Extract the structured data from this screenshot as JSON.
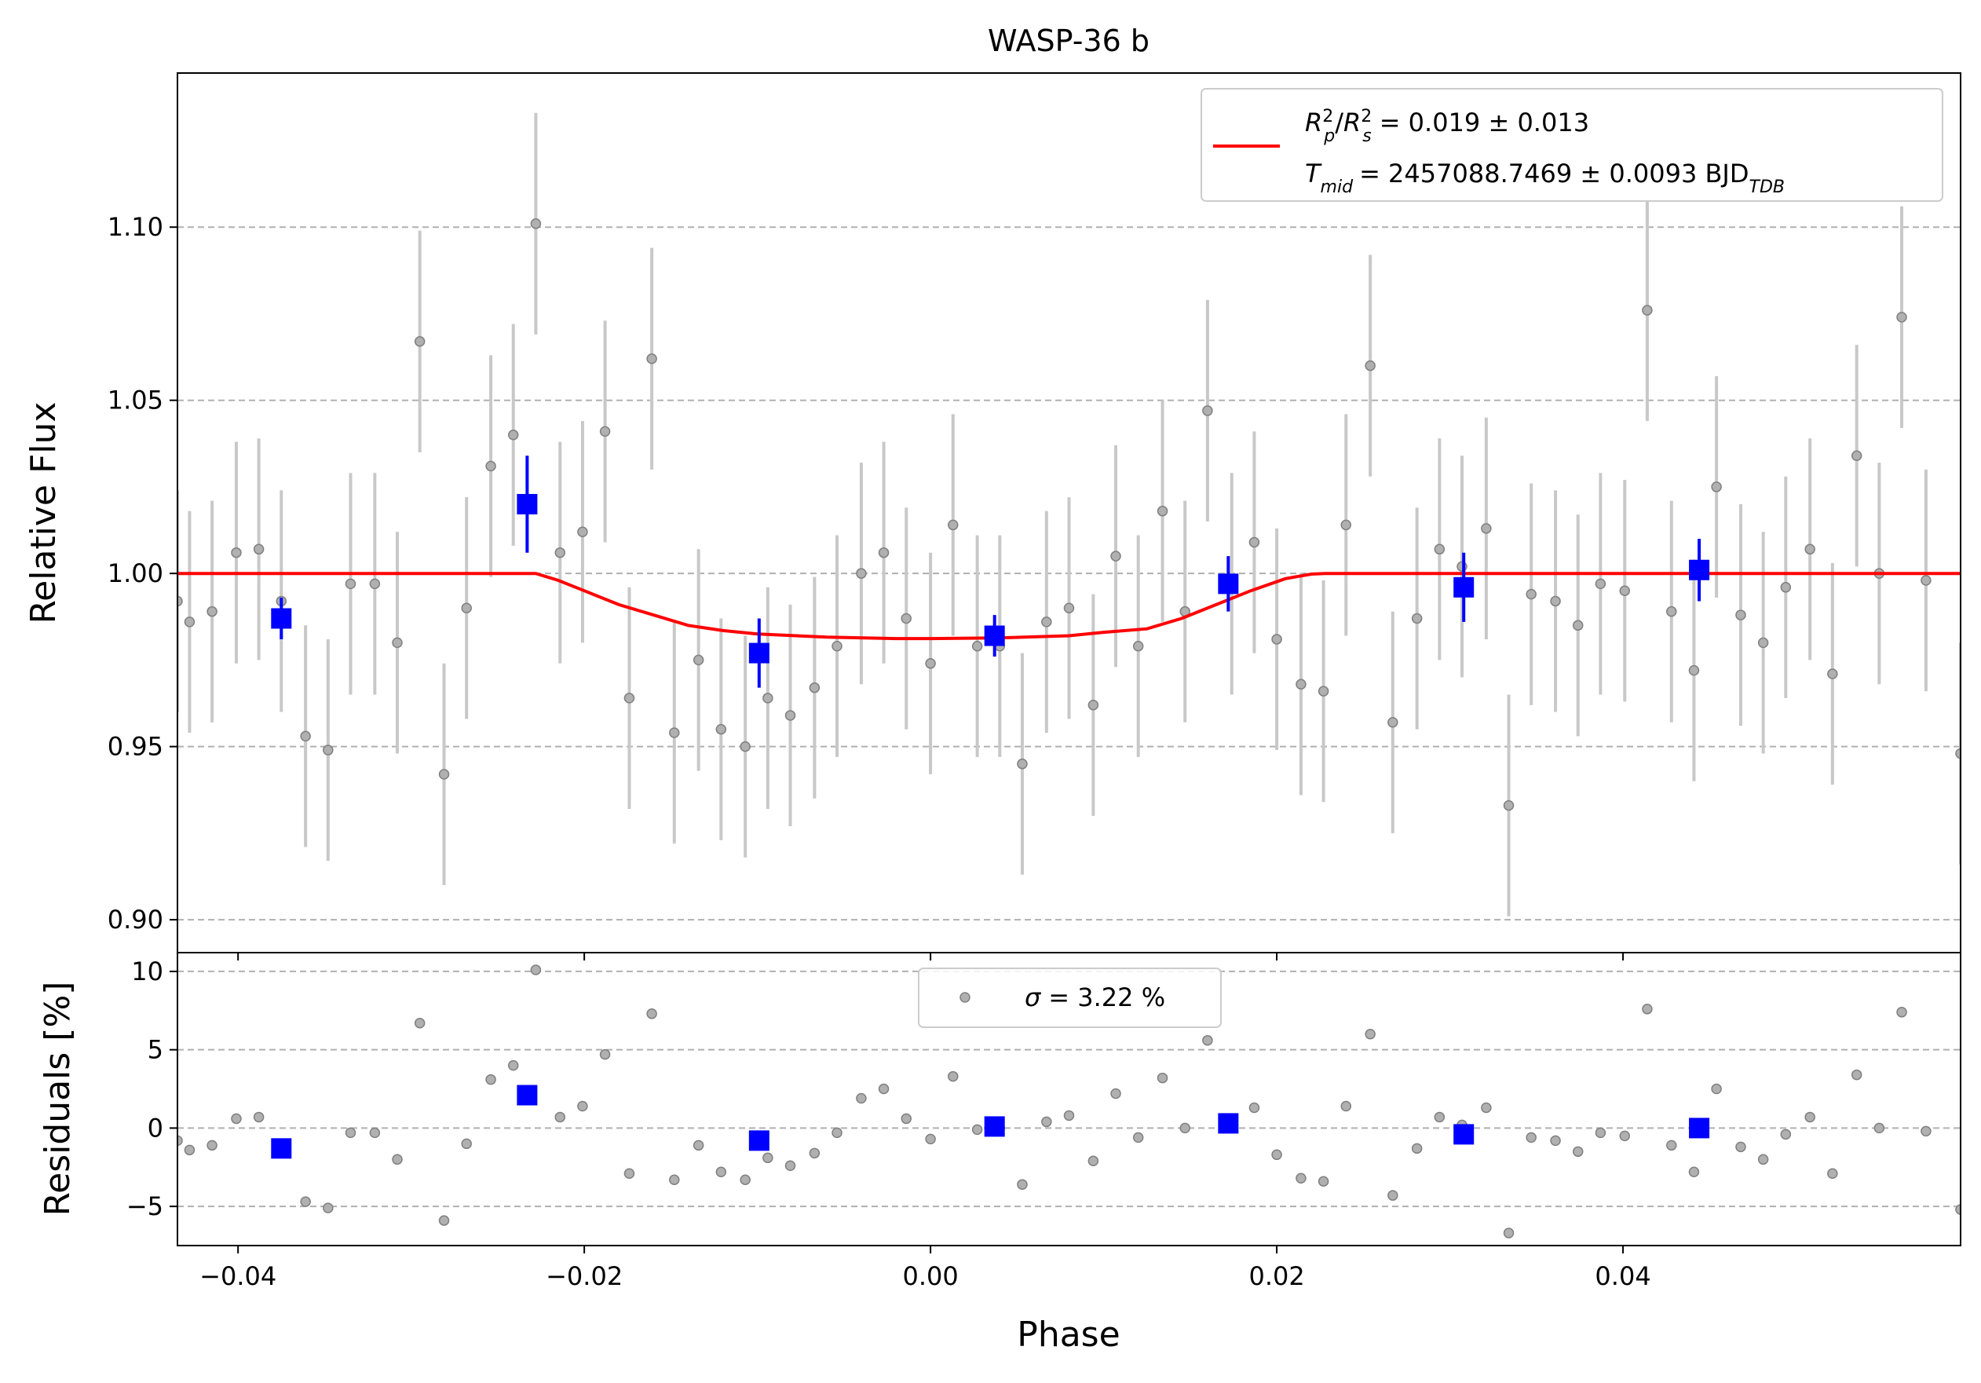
{
  "chart_data": [
    {
      "panel": "main",
      "type": "scatter",
      "title": "WASP-36 b",
      "xlabel": "",
      "ylabel": "Relative Flux",
      "xlim": [
        -0.0435,
        0.0595
      ],
      "ylim": [
        0.8905,
        1.1445
      ],
      "grid": "y-dashed",
      "xticks": [
        -0.04,
        -0.02,
        0.0,
        0.02,
        0.04
      ],
      "yticks": [
        0.9,
        0.95,
        1.0,
        1.05,
        1.1
      ],
      "ytick_labels": [
        "0.90",
        "0.95",
        "1.00",
        "1.05",
        "1.10"
      ],
      "legend": {
        "placement": "top-right",
        "line1_base": "R",
        "line1_p": "p",
        "line1_s": "s",
        "line1_sup": "2",
        "line1_tail": "= 0.019 ± 0.013",
        "line2_base": "T",
        "line2_sub": "mid",
        "line2_tail": "= 2457088.7469 ± 0.0093 BJD",
        "line2_tail_sub": "TDB"
      },
      "colors": {
        "data": "#808080",
        "errbar": "#c8c8c8",
        "binned": "#0000ff",
        "model": "#ff0000",
        "grid": "#b0b0b0"
      },
      "series": [
        {
          "kind": "data",
          "x": [
            -0.0435,
            -0.0428,
            -0.0415,
            -0.0401,
            -0.0388,
            -0.0375,
            -0.0361,
            -0.0348,
            -0.0335,
            -0.0321,
            -0.0308,
            -0.0295,
            -0.0281,
            -0.0268,
            -0.0254,
            -0.0241,
            -0.0228,
            -0.0214,
            -0.0201,
            -0.0188,
            -0.0174,
            -0.0161,
            -0.0148,
            -0.0134,
            -0.0121,
            -0.0107,
            -0.0094,
            -0.0081,
            -0.0067,
            -0.0054,
            -0.004,
            -0.0027,
            -0.0014,
            0.0,
            0.0013,
            0.0027,
            0.004,
            0.0053,
            0.0067,
            0.008,
            0.0094,
            0.0107,
            0.012,
            0.0134,
            0.0147,
            0.016,
            0.0174,
            0.0187,
            0.02,
            0.0214,
            0.0227,
            0.024,
            0.0254,
            0.0267,
            0.0281,
            0.0294,
            0.0307,
            0.0321,
            0.0334,
            0.0347,
            0.0361,
            0.0374,
            0.0387,
            0.0401,
            0.0414,
            0.0428,
            0.0441,
            0.0454,
            0.0468,
            0.0481,
            0.0494,
            0.0508,
            0.0521,
            0.0535,
            0.0548,
            0.0561,
            0.0575,
            0.0595
          ],
          "y": [
            0.992,
            0.986,
            0.989,
            1.006,
            1.007,
            0.992,
            0.953,
            0.949,
            0.997,
            0.997,
            0.98,
            1.067,
            0.942,
            0.99,
            1.031,
            1.04,
            1.101,
            1.006,
            1.012,
            1.041,
            0.964,
            1.062,
            0.954,
            0.975,
            0.955,
            0.95,
            0.964,
            0.959,
            0.967,
            0.979,
            1.0,
            1.006,
            0.987,
            0.974,
            1.014,
            0.979,
            0.979,
            0.945,
            0.986,
            0.99,
            0.962,
            1.005,
            0.979,
            1.018,
            0.989,
            1.047,
            0.997,
            1.009,
            0.981,
            0.968,
            0.966,
            1.014,
            1.06,
            0.957,
            0.987,
            1.007,
            1.002,
            1.013,
            0.933,
            0.994,
            0.992,
            0.985,
            0.997,
            0.995,
            1.076,
            0.989,
            0.972,
            1.025,
            0.988,
            0.98,
            0.996,
            1.007,
            0.971,
            1.034,
            1.0,
            1.074,
            0.998,
            0.948
          ],
          "yerr": 0.032
        },
        {
          "kind": "binned",
          "x": [
            -0.0375,
            -0.0233,
            -0.0099,
            0.0037,
            0.0172,
            0.0308,
            0.0444
          ],
          "y": [
            0.987,
            1.02,
            0.977,
            0.982,
            0.997,
            0.996,
            1.001
          ],
          "yerr": [
            0.006,
            0.014,
            0.01,
            0.006,
            0.008,
            0.01,
            0.009
          ]
        },
        {
          "kind": "model",
          "name": "R_p^2/R_s^2 = 0.019 ± 0.013",
          "x": [
            -0.0435,
            -0.0228,
            -0.0215,
            -0.02,
            -0.018,
            -0.016,
            -0.014,
            -0.012,
            -0.01,
            -0.006,
            -0.002,
            0.0,
            0.004,
            0.008,
            0.01,
            0.0125,
            0.0145,
            0.0165,
            0.0185,
            0.0205,
            0.022,
            0.0228,
            0.0595
          ],
          "y": [
            1.0,
            1.0,
            0.998,
            0.995,
            0.991,
            0.988,
            0.985,
            0.9835,
            0.9825,
            0.9816,
            0.9812,
            0.9812,
            0.9814,
            0.982,
            0.983,
            0.984,
            0.987,
            0.991,
            0.995,
            0.9985,
            0.9998,
            1.0,
            1.0
          ]
        }
      ]
    },
    {
      "panel": "residuals",
      "type": "scatter",
      "xlabel": "Phase",
      "ylabel": "Residuals [%]",
      "xlim": [
        -0.0435,
        0.0595
      ],
      "ylim": [
        -7.5,
        11.2
      ],
      "grid": "y-dashed",
      "xticks": [
        -0.04,
        -0.02,
        0.0,
        0.02,
        0.04
      ],
      "xtick_labels": [
        "−0.04",
        "−0.02",
        "0.00",
        "0.02",
        "0.04"
      ],
      "yticks": [
        -5,
        0,
        5,
        10
      ],
      "ytick_labels": [
        "−5",
        "0",
        "5",
        "10"
      ],
      "legend": {
        "placement": "top-center",
        "sym": "σ",
        "label": "= 3.22 %"
      },
      "series": [
        {
          "kind": "data",
          "x": [
            -0.0435,
            -0.0428,
            -0.0415,
            -0.0401,
            -0.0388,
            -0.0375,
            -0.0361,
            -0.0348,
            -0.0335,
            -0.0321,
            -0.0308,
            -0.0295,
            -0.0281,
            -0.0268,
            -0.0254,
            -0.0241,
            -0.0228,
            -0.0214,
            -0.0201,
            -0.0188,
            -0.0174,
            -0.0161,
            -0.0148,
            -0.0134,
            -0.0121,
            -0.0107,
            -0.0094,
            -0.0081,
            -0.0067,
            -0.0054,
            -0.004,
            -0.0027,
            -0.0014,
            0.0,
            0.0013,
            0.0027,
            0.004,
            0.0053,
            0.0067,
            0.008,
            0.0094,
            0.0107,
            0.012,
            0.0134,
            0.0147,
            0.016,
            0.0174,
            0.0187,
            0.02,
            0.0214,
            0.0227,
            0.024,
            0.0254,
            0.0267,
            0.0281,
            0.0294,
            0.0307,
            0.0321,
            0.0334,
            0.0347,
            0.0361,
            0.0374,
            0.0387,
            0.0401,
            0.0414,
            0.0428,
            0.0441,
            0.0454,
            0.0468,
            0.0481,
            0.0494,
            0.0508,
            0.0521,
            0.0535,
            0.0548,
            0.0561,
            0.0575,
            0.0595
          ],
          "y": [
            -0.8,
            -1.4,
            -1.1,
            0.6,
            0.7,
            -1.4,
            -4.7,
            -5.1,
            -0.3,
            -0.3,
            -2.0,
            6.7,
            -5.9,
            -1.0,
            3.1,
            4.0,
            10.1,
            0.7,
            1.4,
            4.7,
            -2.9,
            7.3,
            -3.3,
            -1.1,
            -2.8,
            -3.3,
            -1.9,
            -2.4,
            -1.6,
            -0.3,
            1.9,
            2.5,
            0.6,
            -0.7,
            3.3,
            -0.1,
            0.0,
            -3.6,
            0.4,
            0.8,
            -2.1,
            2.2,
            -0.6,
            3.2,
            0.0,
            5.6,
            0.3,
            1.3,
            -1.7,
            -3.2,
            -3.4,
            1.4,
            6.0,
            -4.3,
            -1.3,
            0.7,
            0.2,
            1.3,
            -6.7,
            -0.6,
            -0.8,
            -1.5,
            -0.3,
            -0.5,
            7.6,
            -1.1,
            -2.8,
            2.5,
            -1.2,
            -2.0,
            -0.4,
            0.7,
            -2.9,
            3.4,
            0.0,
            7.4,
            -0.2,
            -5.2
          ]
        },
        {
          "kind": "binned",
          "x": [
            -0.0375,
            -0.0233,
            -0.0099,
            0.0037,
            0.0172,
            0.0308,
            0.0444
          ],
          "y": [
            -1.3,
            2.1,
            -0.8,
            0.1,
            0.3,
            -0.4,
            0.0
          ]
        }
      ]
    }
  ]
}
